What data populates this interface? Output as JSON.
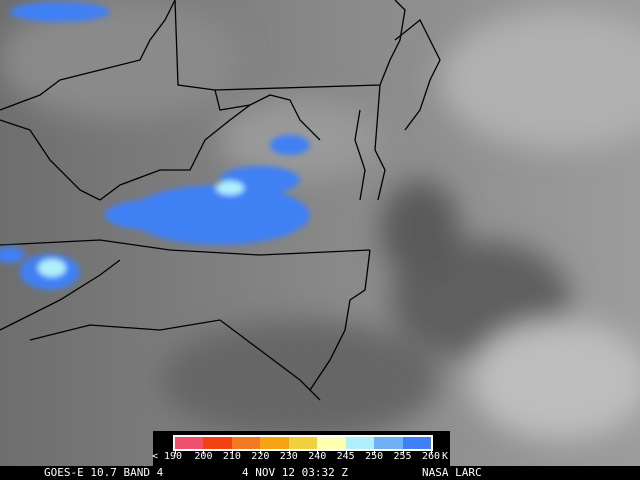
{
  "legend": {
    "labels": [
      "< 190",
      "200",
      "210",
      "220",
      "230",
      "240",
      "245",
      "250",
      "255",
      "260"
    ],
    "unit": "K",
    "colors": [
      "#f0506e",
      "#f04212",
      "#f27a22",
      "#f5a514",
      "#f0d040",
      "#ffffb0",
      "#b0f0fa",
      "#70b0f5",
      "#4080f5"
    ]
  },
  "status": {
    "satellite": "GOES-E 10.7 BAND 4",
    "datetime": "4 NOV 12 03:32 Z",
    "source": "NASA LARC"
  },
  "map": {
    "background": "grayscale infrared satellite imagery",
    "cold_cloud_color": "#4080f5"
  }
}
